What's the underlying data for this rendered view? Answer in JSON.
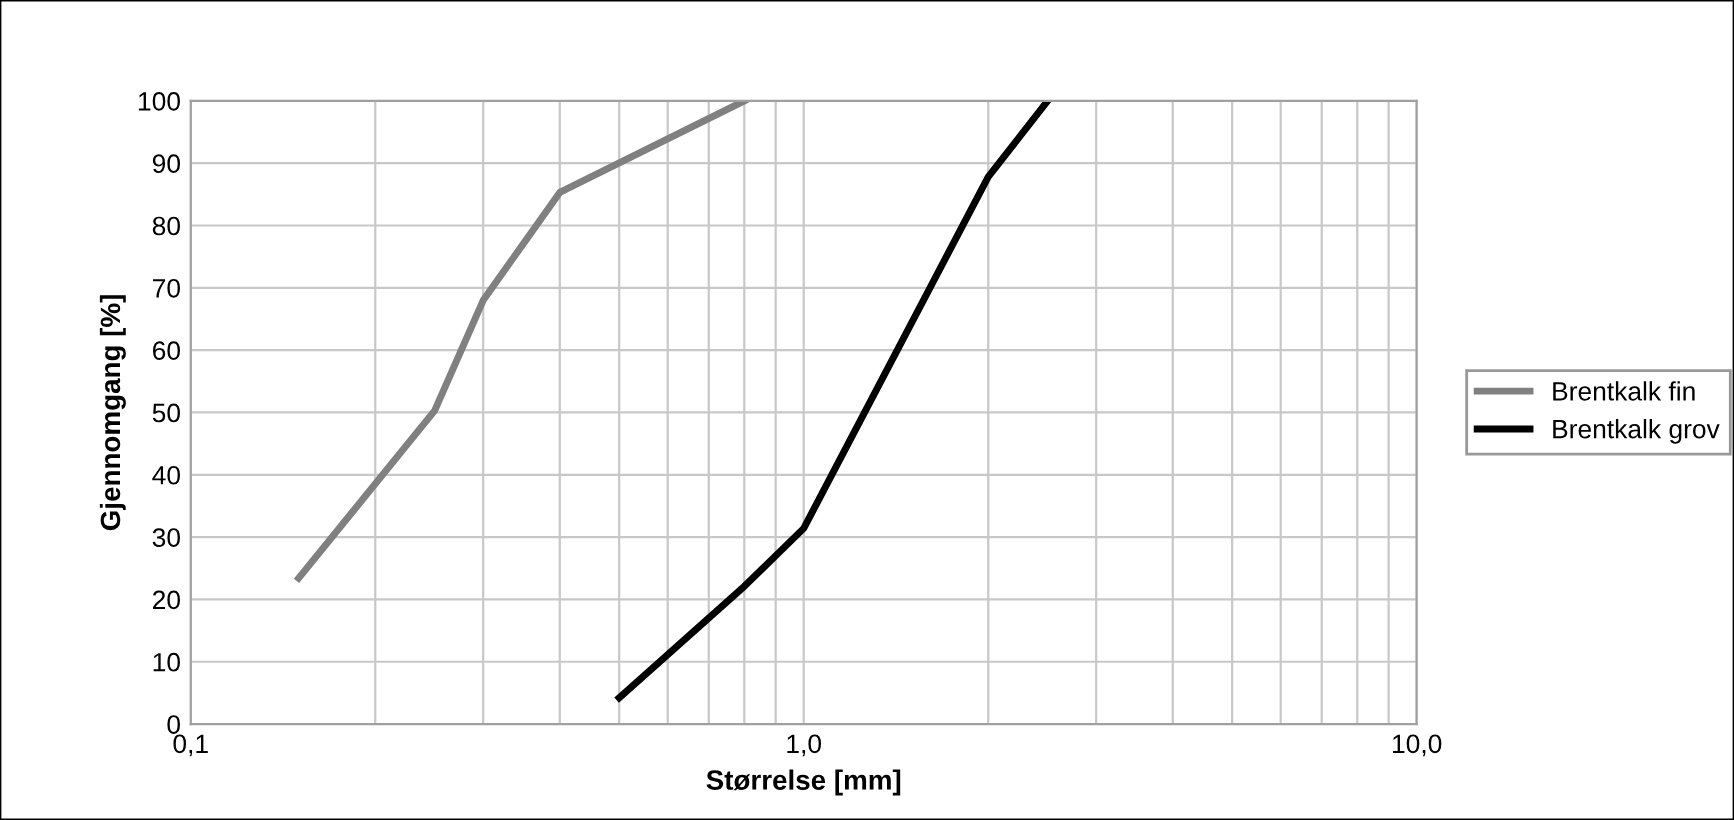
{
  "chart_data": {
    "type": "line",
    "xlabel": "Størrelse [mm]",
    "ylabel": "Gjennomgang [%]",
    "log": "x",
    "xlim": [
      0.1,
      10
    ],
    "ylim": [
      0,
      100
    ],
    "xticks": [
      {
        "value": 0.1,
        "label": "0,1"
      },
      {
        "value": 0.2,
        "label": null
      },
      {
        "value": 0.3,
        "label": null
      },
      {
        "value": 0.4,
        "label": null
      },
      {
        "value": 0.5,
        "label": null
      },
      {
        "value": 0.6,
        "label": null
      },
      {
        "value": 0.7,
        "label": null
      },
      {
        "value": 0.8,
        "label": null
      },
      {
        "value": 0.9,
        "label": null
      },
      {
        "value": 1,
        "label": "1,0"
      },
      {
        "value": 2,
        "label": null
      },
      {
        "value": 3,
        "label": null
      },
      {
        "value": 4,
        "label": null
      },
      {
        "value": 5,
        "label": null
      },
      {
        "value": 6,
        "label": null
      },
      {
        "value": 7,
        "label": null
      },
      {
        "value": 8,
        "label": null
      },
      {
        "value": 9,
        "label": null
      },
      {
        "value": 10,
        "label": "10,0"
      }
    ],
    "yticks": [
      0,
      10,
      20,
      30,
      40,
      50,
      60,
      70,
      80,
      90,
      100
    ],
    "grid": true,
    "legend": "right",
    "marker": "none",
    "line_style": "solid",
    "series": [
      {
        "name": "Brentkalk fin",
        "color": "#808080",
        "x": [
          0.15,
          0.25,
          0.3,
          0.4,
          0.8
        ],
        "values": [
          23.4,
          50.3,
          68,
          85.3,
          100
        ]
      },
      {
        "name": "Brentkalk grov",
        "color": "#000000",
        "x": [
          0.5,
          0.8,
          1.0,
          2.0,
          2.5
        ],
        "values": [
          4.2,
          22.1,
          31.4,
          87.8,
          100
        ]
      }
    ]
  }
}
